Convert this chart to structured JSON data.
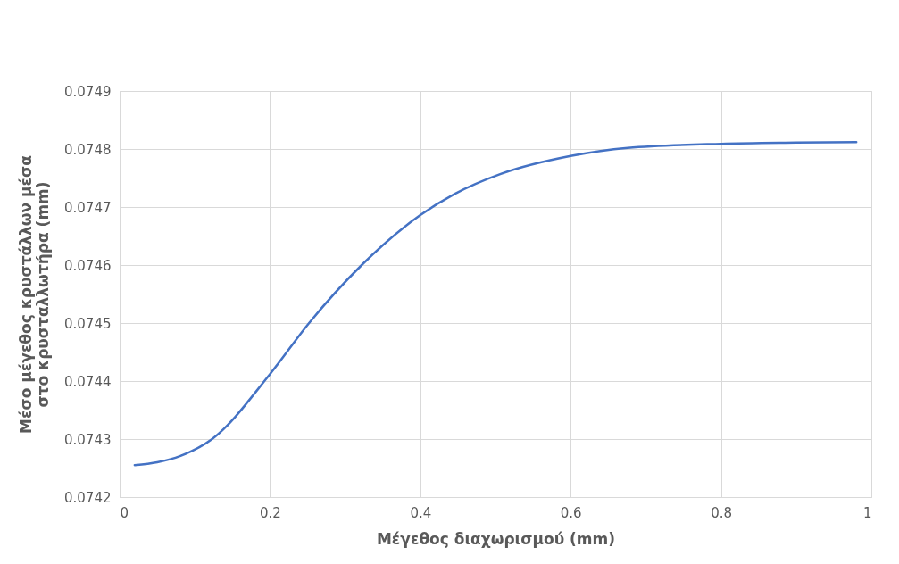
{
  "chart_data": {
    "type": "line",
    "xlabel": "Μέγεθος διαχωρισμού (mm)",
    "ylabel": "Μέσο μέγεθος κρυστάλλων μέσα στο κρυσταλλωτήρα (mm)",
    "x": [
      0.02,
      0.05,
      0.081,
      0.123,
      0.2,
      0.252,
      0.322,
      0.4,
      0.445,
      0.507,
      0.6,
      0.676,
      0.8,
      0.9,
      0.98
    ],
    "series": [
      {
        "color": "#4472c4",
        "values": [
          0.074255,
          0.07426,
          0.074271,
          0.0743,
          0.074412,
          0.0745,
          0.0746,
          0.074686,
          0.074722,
          0.074757,
          0.074788,
          0.074802,
          0.074809,
          0.074811,
          0.074812
        ]
      }
    ],
    "xlim": [
      0,
      1
    ],
    "xticks": [
      0,
      0.2,
      0.4,
      0.6,
      0.8,
      1
    ],
    "ylim": [
      0.0742,
      0.0749
    ],
    "yticks": [
      0.0742,
      0.0743,
      0.0744,
      0.0745,
      0.0746,
      0.0747,
      0.0748,
      0.0749
    ],
    "grid": true,
    "line_style": "solid",
    "marker": "none"
  }
}
